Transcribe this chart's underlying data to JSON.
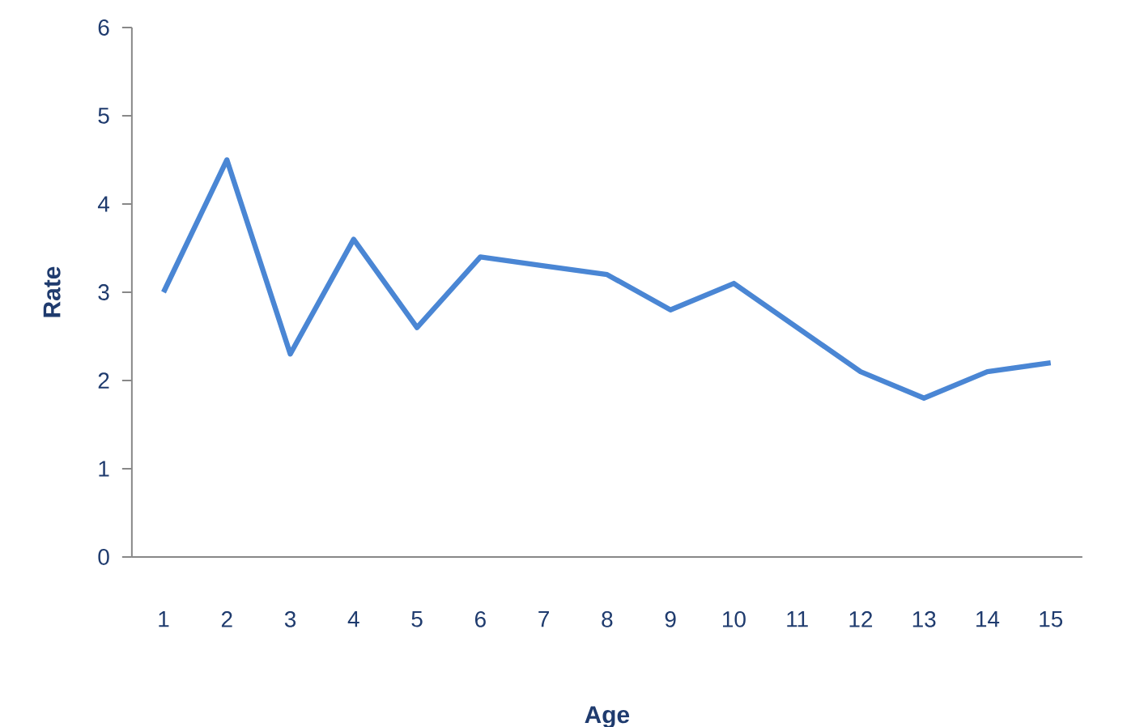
{
  "chart_data": {
    "type": "line",
    "xlabel": "Age",
    "ylabel": "Rate",
    "categories": [
      "1",
      "2",
      "3",
      "4",
      "5",
      "6",
      "7",
      "8",
      "9",
      "10",
      "11",
      "12",
      "13",
      "14",
      "15"
    ],
    "values": [
      3.0,
      4.5,
      2.3,
      3.6,
      2.6,
      3.4,
      3.3,
      3.2,
      2.8,
      3.1,
      2.6,
      2.1,
      1.8,
      2.1,
      2.2
    ],
    "color": "#4a86d4",
    "ylim": [
      0,
      6
    ],
    "yticks": [
      0,
      1,
      2,
      3,
      4,
      5,
      6
    ]
  }
}
